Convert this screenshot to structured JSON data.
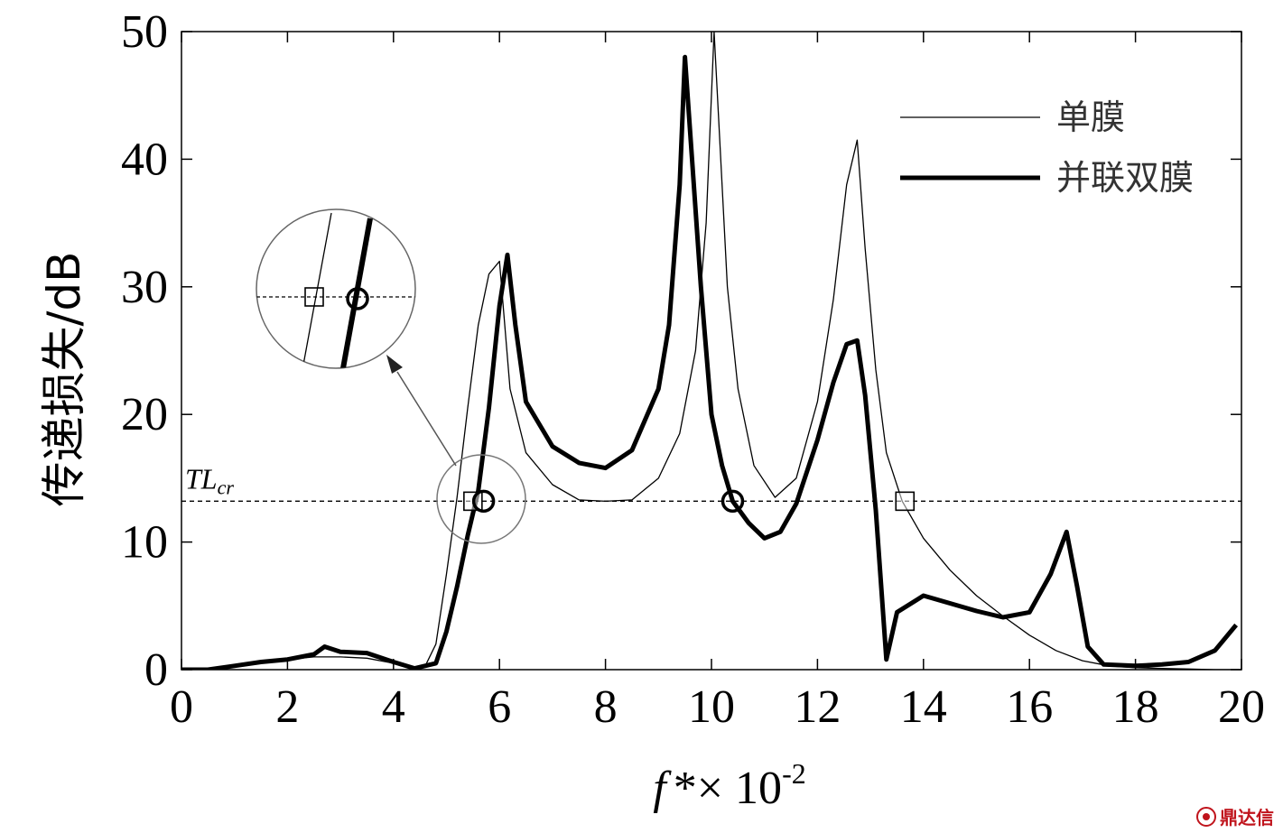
{
  "chart_data": {
    "type": "line",
    "xlabel_main": "f",
    "xlabel_rest": "*× 10",
    "xlabel_exp": "-2",
    "ylabel": "传递损失/dB",
    "xlim": [
      0,
      20
    ],
    "ylim": [
      0,
      50
    ],
    "x_ticks": [
      "0",
      "2",
      "4",
      "6",
      "8",
      "10",
      "12",
      "14",
      "16",
      "18",
      "20"
    ],
    "y_ticks": [
      "0",
      "10",
      "20",
      "30",
      "40",
      "50"
    ],
    "grid": false,
    "legend_position": "top-right",
    "threshold": {
      "label_main": "TL",
      "label_sub": "cr",
      "value": 13.2
    },
    "series": [
      {
        "name": "单膜",
        "style": "thin",
        "color": "#000000",
        "x": [
          0,
          0.5,
          1,
          1.5,
          2,
          2.5,
          3,
          3.5,
          4,
          4.3,
          4.6,
          4.8,
          5.0,
          5.2,
          5.4,
          5.6,
          5.8,
          6.0,
          6.2,
          6.5,
          7.0,
          7.5,
          8.0,
          8.5,
          9.0,
          9.4,
          9.7,
          9.9,
          10.05,
          10.15,
          10.3,
          10.5,
          10.8,
          11.2,
          11.6,
          12.0,
          12.3,
          12.55,
          12.75,
          12.9,
          13.1,
          13.3,
          13.6,
          14.0,
          14.5,
          15.0,
          15.5,
          16.0,
          16.5,
          17.0,
          17.5,
          18.0,
          18.5,
          19.0,
          19.5,
          20.0
        ],
        "y": [
          0,
          0.1,
          0.3,
          0.6,
          0.8,
          1.0,
          1.0,
          0.9,
          0.5,
          0.2,
          0.3,
          2.0,
          7.5,
          13.5,
          20.5,
          27.0,
          31.0,
          32.0,
          22.0,
          17.0,
          14.5,
          13.3,
          13.2,
          13.3,
          15.0,
          18.5,
          25.0,
          35.0,
          50.0,
          42.0,
          30.0,
          22.0,
          16.0,
          13.5,
          15.0,
          21.0,
          29.0,
          38.0,
          41.5,
          33.0,
          23.5,
          17.0,
          13.2,
          10.3,
          7.8,
          5.8,
          4.2,
          2.7,
          1.5,
          0.7,
          0.3,
          0.15,
          0.1,
          0.05,
          0,
          0
        ]
      },
      {
        "name": "并联双膜",
        "style": "thick",
        "color": "#000000",
        "x": [
          0,
          0.5,
          1,
          1.5,
          2,
          2.5,
          2.7,
          3,
          3.5,
          4,
          4.4,
          4.8,
          5.0,
          5.2,
          5.4,
          5.6,
          5.8,
          6.0,
          6.15,
          6.3,
          6.5,
          7.0,
          7.5,
          8.0,
          8.5,
          9.0,
          9.2,
          9.4,
          9.5,
          9.6,
          9.8,
          10.0,
          10.2,
          10.4,
          10.7,
          11.0,
          11.3,
          11.6,
          12.0,
          12.3,
          12.55,
          12.75,
          12.9,
          13.1,
          13.3,
          13.5,
          14.0,
          14.5,
          15.0,
          15.5,
          16.0,
          16.4,
          16.7,
          16.9,
          17.1,
          17.4,
          18.0,
          18.5,
          19.0,
          19.5,
          19.9
        ],
        "y": [
          0,
          0,
          0.3,
          0.6,
          0.8,
          1.2,
          1.8,
          1.4,
          1.3,
          0.6,
          0.1,
          0.5,
          3.0,
          6.5,
          10.5,
          14.0,
          20.5,
          28.5,
          32.5,
          27.0,
          21.0,
          17.5,
          16.2,
          15.8,
          17.2,
          22.0,
          27.0,
          38.0,
          48.0,
          42.0,
          30.0,
          20.0,
          16.0,
          13.2,
          11.5,
          10.3,
          10.8,
          13.0,
          18.0,
          22.5,
          25.5,
          25.8,
          21.5,
          12.5,
          0.8,
          4.5,
          5.8,
          5.2,
          4.6,
          4.1,
          4.5,
          7.5,
          10.8,
          6.5,
          1.8,
          0.4,
          0.3,
          0.4,
          0.6,
          1.5,
          3.5
        ]
      }
    ],
    "markers": [
      {
        "shape": "square",
        "x": 5.5,
        "y": 13.2
      },
      {
        "shape": "circle",
        "x": 5.7,
        "y": 13.2
      },
      {
        "shape": "circle",
        "x": 10.4,
        "y": 13.2
      },
      {
        "shape": "square",
        "x": 13.65,
        "y": 13.2
      }
    ]
  },
  "watermark": {
    "text": "鼎达信"
  }
}
